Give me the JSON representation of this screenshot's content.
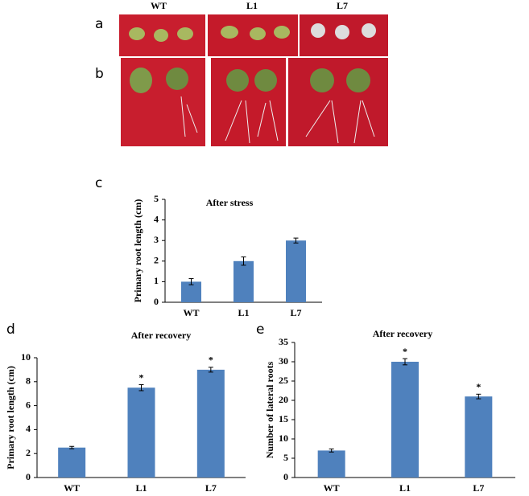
{
  "photo_panels": {
    "labels": [
      "a",
      "b"
    ],
    "columns": [
      "WT",
      "L1",
      "L7"
    ]
  },
  "chart_data": [
    {
      "type": "bar",
      "panel": "c",
      "title": "After stress",
      "y_label": "Primary root length (cm)",
      "categories": [
        "WT",
        "L1",
        "L7"
      ],
      "values": [
        1.0,
        2.0,
        3.0
      ],
      "errors": [
        0.15,
        0.2,
        0.12
      ],
      "annotations": [
        null,
        null,
        null
      ],
      "color": "#4f81bd",
      "ylim": [
        0,
        5
      ],
      "yticks": [
        0,
        1,
        2,
        3,
        4,
        5
      ]
    },
    {
      "type": "bar",
      "panel": "d",
      "title": "After recovery",
      "y_label": "Primary root length (cm)",
      "categories": [
        "WT",
        "L1",
        "L7"
      ],
      "values": [
        2.5,
        7.5,
        9.0
      ],
      "errors": [
        0.1,
        0.25,
        0.2
      ],
      "annotations": [
        null,
        "*",
        "*"
      ],
      "color": "#4f81bd",
      "ylim": [
        0,
        10
      ],
      "yticks": [
        0,
        2,
        4,
        6,
        8,
        10
      ]
    },
    {
      "type": "bar",
      "panel": "e",
      "title": "After recovery",
      "y_label": "Number of lateral roots",
      "categories": [
        "WT",
        "L1",
        "L7"
      ],
      "values": [
        7,
        30,
        21
      ],
      "errors": [
        0.4,
        0.8,
        0.6
      ],
      "annotations": [
        null,
        "*",
        "*"
      ],
      "color": "#4f81bd",
      "ylim": [
        0,
        35
      ],
      "yticks": [
        0,
        5,
        10,
        15,
        20,
        25,
        30,
        35
      ]
    }
  ]
}
